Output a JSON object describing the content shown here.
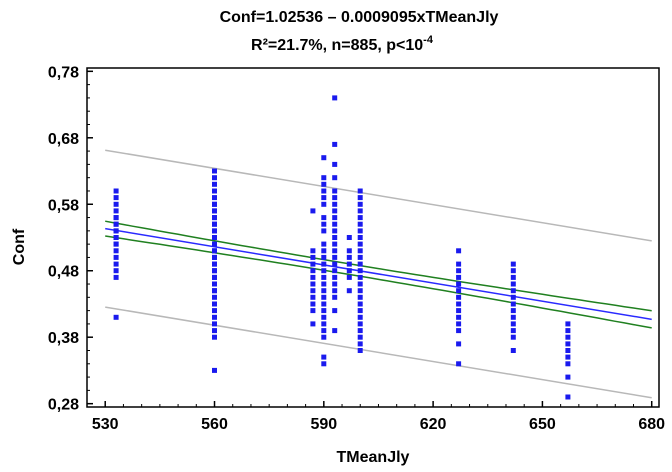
{
  "chart_data": {
    "type": "scatter",
    "title_line1": "Conf=1.02536 – 0.0009095xTMeanJly",
    "title_line2": "R²=21.7%, n=885, p<10",
    "title_line2_superscript": "-4",
    "xlabel": "TMeanJly",
    "ylabel": "Conf",
    "xlim": [
      525,
      682
    ],
    "ylim": [
      0.275,
      0.785
    ],
    "x_ticks": [
      530,
      560,
      590,
      620,
      650,
      680
    ],
    "x_tick_labels": [
      "530",
      "560",
      "590",
      "620",
      "650",
      "680"
    ],
    "y_ticks": [
      0.28,
      0.38,
      0.48,
      0.58,
      0.68,
      0.78
    ],
    "y_tick_labels": [
      "0,28",
      "0,38",
      "0,48",
      "0,58",
      "0,68",
      "0,78"
    ],
    "grid": false,
    "regression": {
      "intercept": 1.02536,
      "slope": -0.0009095,
      "color": "#2a2aff"
    },
    "confidence_band": {
      "color": "#208020",
      "width_at_mean": 0.008,
      "width_at_ends": 0.012
    },
    "prediction_band": {
      "color": "#b8b8b8",
      "width": 0.118
    },
    "point_color": "#1a1aee",
    "points_by_x": [
      {
        "x": 533,
        "y": [
          0.41,
          0.47,
          0.48,
          0.49,
          0.5,
          0.51,
          0.52,
          0.52,
          0.53,
          0.53,
          0.54,
          0.54,
          0.55,
          0.55,
          0.56,
          0.56,
          0.57,
          0.58,
          0.59,
          0.6
        ]
      },
      {
        "x": 560,
        "y": [
          0.33,
          0.38,
          0.39,
          0.4,
          0.41,
          0.42,
          0.43,
          0.43,
          0.44,
          0.45,
          0.45,
          0.46,
          0.46,
          0.47,
          0.47,
          0.48,
          0.48,
          0.49,
          0.49,
          0.5,
          0.5,
          0.51,
          0.51,
          0.52,
          0.52,
          0.53,
          0.53,
          0.54,
          0.54,
          0.55,
          0.55,
          0.56,
          0.56,
          0.57,
          0.57,
          0.58,
          0.58,
          0.59,
          0.6,
          0.61,
          0.62,
          0.63
        ]
      },
      {
        "x": 587,
        "y": [
          0.4,
          0.42,
          0.43,
          0.44,
          0.45,
          0.46,
          0.47,
          0.48,
          0.49,
          0.5,
          0.51,
          0.57
        ]
      },
      {
        "x": 590,
        "y": [
          0.34,
          0.35,
          0.38,
          0.39,
          0.4,
          0.41,
          0.42,
          0.43,
          0.44,
          0.45,
          0.46,
          0.47,
          0.48,
          0.49,
          0.5,
          0.51,
          0.52,
          0.54,
          0.55,
          0.56,
          0.58,
          0.59,
          0.6,
          0.61,
          0.62,
          0.65
        ]
      },
      {
        "x": 593,
        "y": [
          0.39,
          0.42,
          0.44,
          0.45,
          0.46,
          0.47,
          0.48,
          0.49,
          0.5,
          0.51,
          0.52,
          0.53,
          0.54,
          0.55,
          0.56,
          0.57,
          0.58,
          0.59,
          0.6,
          0.62,
          0.64,
          0.67,
          0.74
        ]
      },
      {
        "x": 597,
        "y": [
          0.45,
          0.47,
          0.48,
          0.49,
          0.5,
          0.51,
          0.53
        ]
      },
      {
        "x": 600,
        "y": [
          0.36,
          0.37,
          0.38,
          0.39,
          0.4,
          0.41,
          0.42,
          0.43,
          0.44,
          0.45,
          0.46,
          0.47,
          0.48,
          0.49,
          0.5,
          0.51,
          0.52,
          0.53,
          0.54,
          0.55,
          0.56,
          0.57,
          0.58,
          0.59,
          0.6
        ]
      },
      {
        "x": 627,
        "y": [
          0.34,
          0.37,
          0.39,
          0.4,
          0.41,
          0.42,
          0.43,
          0.44,
          0.45,
          0.46,
          0.47,
          0.48,
          0.49,
          0.51
        ]
      },
      {
        "x": 642,
        "y": [
          0.36,
          0.38,
          0.39,
          0.4,
          0.41,
          0.42,
          0.43,
          0.44,
          0.45,
          0.46,
          0.47,
          0.48,
          0.49
        ]
      },
      {
        "x": 657,
        "y": [
          0.29,
          0.32,
          0.34,
          0.35,
          0.36,
          0.37,
          0.38,
          0.39,
          0.4
        ]
      }
    ]
  }
}
